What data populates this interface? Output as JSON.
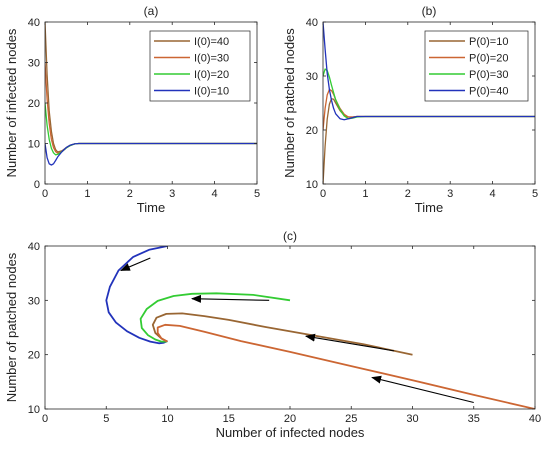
{
  "chart_data": [
    {
      "id": "a",
      "type": "line",
      "title": "(a)",
      "xlabel": "Time",
      "ylabel": "Number of infected nodes",
      "xlim": [
        0,
        5
      ],
      "ylim": [
        0,
        40
      ],
      "xticks": [
        0,
        1,
        2,
        3,
        4,
        5
      ],
      "yticks": [
        0,
        10,
        20,
        30,
        40
      ],
      "legend_position": "top-right",
      "series": [
        {
          "name": "I(0)=40",
          "color": "#996633",
          "x": [
            0,
            0.05,
            0.1,
            0.15,
            0.2,
            0.25,
            0.3,
            0.4,
            0.5,
            0.6,
            0.7,
            0.8,
            1.0,
            1.2,
            5
          ],
          "y": [
            40,
            27,
            18,
            13,
            10,
            8.5,
            7.9,
            8.2,
            9.0,
            9.6,
            9.9,
            10,
            10,
            10,
            10
          ]
        },
        {
          "name": "I(0)=30",
          "color": "#CC6633",
          "x": [
            0,
            0.05,
            0.1,
            0.15,
            0.2,
            0.25,
            0.3,
            0.4,
            0.5,
            0.6,
            0.7,
            0.8,
            1.0,
            1.2,
            5
          ],
          "y": [
            30,
            21,
            15,
            11,
            9,
            8.0,
            7.6,
            8.0,
            8.9,
            9.5,
            9.9,
            10,
            10,
            10,
            10
          ]
        },
        {
          "name": "I(0)=20",
          "color": "#33CC33",
          "x": [
            0,
            0.05,
            0.1,
            0.15,
            0.2,
            0.25,
            0.3,
            0.4,
            0.5,
            0.6,
            0.7,
            0.8,
            1.0,
            1.2,
            5
          ],
          "y": [
            20,
            14.5,
            11,
            8.8,
            7.7,
            7.2,
            7.3,
            8.0,
            8.9,
            9.5,
            9.9,
            10,
            10,
            10,
            10
          ]
        },
        {
          "name": "I(0)=10",
          "color": "#2233BB",
          "x": [
            0,
            0.05,
            0.1,
            0.15,
            0.2,
            0.25,
            0.3,
            0.4,
            0.5,
            0.6,
            0.7,
            0.8,
            1.0,
            1.2,
            5
          ],
          "y": [
            10,
            6.5,
            5.0,
            4.7,
            5.0,
            5.8,
            6.7,
            8.0,
            9.0,
            9.6,
            9.9,
            10,
            10,
            10,
            10
          ]
        }
      ]
    },
    {
      "id": "b",
      "type": "line",
      "title": "(b)",
      "xlabel": "Time",
      "ylabel": "Number of patched nodes",
      "xlim": [
        0,
        5
      ],
      "ylim": [
        10,
        40
      ],
      "xticks": [
        0,
        1,
        2,
        3,
        4,
        5
      ],
      "yticks": [
        10,
        20,
        30,
        40
      ],
      "legend_position": "top-right",
      "series": [
        {
          "name": "P(0)=10",
          "color": "#996633",
          "x": [
            0,
            0.05,
            0.1,
            0.15,
            0.2,
            0.25,
            0.3,
            0.4,
            0.5,
            0.6,
            0.7,
            0.8,
            1.0,
            1.2,
            5
          ],
          "y": [
            10,
            17,
            22,
            24.8,
            25.8,
            25.7,
            25.0,
            23.6,
            22.7,
            22.4,
            22.4,
            22.5,
            22.5,
            22.5,
            22.5
          ]
        },
        {
          "name": "P(0)=20",
          "color": "#CC6633",
          "x": [
            0,
            0.05,
            0.1,
            0.15,
            0.2,
            0.25,
            0.3,
            0.4,
            0.5,
            0.6,
            0.7,
            0.8,
            1.0,
            1.2,
            5
          ],
          "y": [
            20,
            24,
            26.5,
            27.5,
            27.3,
            26.6,
            25.6,
            24.0,
            22.9,
            22.4,
            22.4,
            22.5,
            22.5,
            22.5,
            22.5
          ]
        },
        {
          "name": "P(0)=30",
          "color": "#33CC33",
          "x": [
            0,
            0.05,
            0.1,
            0.15,
            0.2,
            0.25,
            0.3,
            0.4,
            0.5,
            0.6,
            0.7,
            0.8,
            1.0,
            1.2,
            5
          ],
          "y": [
            30,
            31.3,
            31.0,
            29.8,
            28.3,
            26.9,
            25.6,
            23.8,
            22.6,
            22.1,
            22.2,
            22.4,
            22.5,
            22.5,
            22.5
          ]
        },
        {
          "name": "P(0)=40",
          "color": "#2233BB",
          "x": [
            0,
            0.05,
            0.1,
            0.15,
            0.2,
            0.25,
            0.3,
            0.4,
            0.5,
            0.6,
            0.7,
            0.8,
            1.0,
            1.2,
            5
          ],
          "y": [
            40,
            35,
            30.5,
            27.5,
            25.5,
            24.0,
            23.0,
            22.1,
            21.9,
            22.1,
            22.3,
            22.5,
            22.5,
            22.5,
            22.5
          ]
        }
      ]
    },
    {
      "id": "c",
      "type": "line",
      "title": "(c)",
      "xlabel": "Number of infected nodes",
      "ylabel": "Number of patched nodes",
      "xlim": [
        0,
        40
      ],
      "ylim": [
        10,
        40
      ],
      "xticks": [
        0,
        5,
        10,
        15,
        20,
        25,
        30,
        35,
        40
      ],
      "yticks": [
        10,
        20,
        30,
        40
      ],
      "series": [
        {
          "color": "#2233BB",
          "x": [
            10,
            8.5,
            7.2,
            6.0,
            5.3,
            5.0,
            5.2,
            5.8,
            6.7,
            7.7,
            8.6,
            9.3,
            9.7,
            10
          ],
          "y": [
            40,
            39.3,
            38.0,
            35.5,
            32.5,
            30.0,
            27.8,
            25.9,
            24.3,
            23.1,
            22.4,
            22.1,
            22.2,
            22.5
          ]
        },
        {
          "color": "#33CC33",
          "x": [
            20,
            17,
            14,
            12,
            10.5,
            9.2,
            8.3,
            7.8,
            7.9,
            8.4,
            9.0,
            9.5,
            9.9,
            10
          ],
          "y": [
            30,
            31.0,
            31.3,
            31.2,
            30.8,
            29.9,
            28.4,
            26.6,
            24.9,
            23.6,
            22.8,
            22.4,
            22.4,
            22.5
          ]
        },
        {
          "color": "#996633",
          "x": [
            30,
            26,
            22,
            18,
            15,
            13,
            11.2,
            9.9,
            9.1,
            8.8,
            9.0,
            9.5,
            9.9,
            10
          ],
          "y": [
            20,
            21.9,
            23.5,
            25.1,
            26.4,
            27.1,
            27.6,
            27.5,
            26.8,
            25.5,
            24.0,
            23.0,
            22.5,
            22.5
          ]
        },
        {
          "color": "#CC6633",
          "x": [
            40,
            35,
            30,
            25,
            20,
            16,
            13,
            11,
            9.8,
            9.2,
            9.2,
            9.5,
            9.9,
            10
          ],
          "y": [
            10,
            12.6,
            15.3,
            17.9,
            20.5,
            22.5,
            24.2,
            25.3,
            25.5,
            25.0,
            24.0,
            23.0,
            22.5,
            22.5
          ]
        }
      ]
    }
  ]
}
